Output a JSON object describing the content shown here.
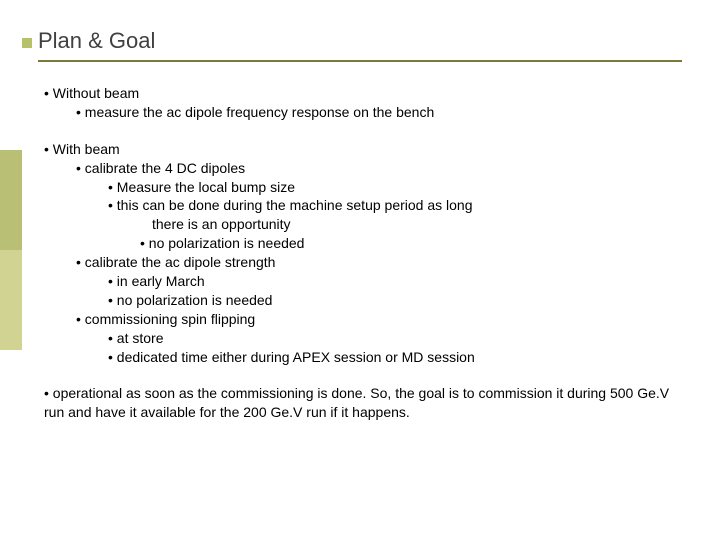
{
  "title": "Plan & Goal",
  "colors": {
    "accent_square": "#b7c16a",
    "underline": "#7a7a3a",
    "side_top": "#babf76",
    "side_bottom": "#d1d393",
    "text": "#000000",
    "title_text": "#404040",
    "background": "#ffffff"
  },
  "lines": {
    "a1": "• Without beam",
    "a2": "• measure the ac dipole frequency response on the bench",
    "b1": "• With beam",
    "b2": "• calibrate the 4 DC dipoles",
    "b3": "• Measure the local bump size",
    "b4": "• this can be done during the machine setup period as long",
    "b4cont": "there is an opportunity",
    "b5": "• no polarization is needed",
    "b6": "• calibrate the ac dipole strength",
    "b7": "• in early March",
    "b8": "• no polarization is needed",
    "b9": "• commissioning spin flipping",
    "b10": "• at store",
    "b11": "• dedicated time either during APEX session or MD session",
    "final": "• operational as soon as the commissioning is done. So, the goal is to commission it during 500 Ge.V run and have it available for the 200 Ge.V run if it happens."
  }
}
